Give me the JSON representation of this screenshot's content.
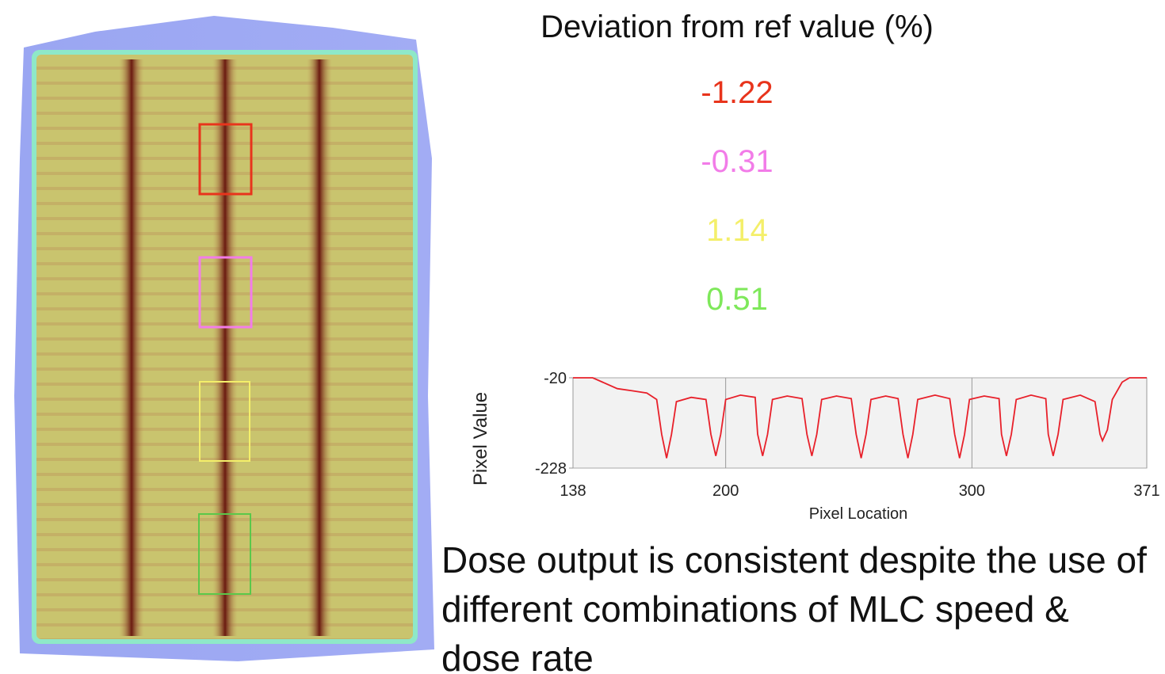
{
  "title": "Deviation from ref value (%)",
  "deviations": [
    {
      "value": -1.22,
      "color": "#e8341c"
    },
    {
      "value": -0.31,
      "color": "#f27ce8"
    },
    {
      "value": 1.14,
      "color": "#f4ef6a"
    },
    {
      "value": 0.51,
      "color": "#7ee85a"
    }
  ],
  "conclusion": "Dose output is consistent despite the use of different combinations of MLC speed & dose rate",
  "chart_data": {
    "type": "line",
    "x_label": "Pixel Location",
    "y_label": "Pixel Value",
    "color": "#e8202a",
    "x": [
      138,
      146,
      150,
      156,
      162,
      168,
      172,
      174,
      176,
      178,
      180,
      186,
      192,
      194,
      196,
      198,
      200,
      206,
      212,
      213,
      215,
      217,
      219,
      225,
      231,
      233,
      235,
      237,
      239,
      245,
      251,
      253,
      255,
      257,
      259,
      265,
      270,
      272,
      274,
      276,
      278,
      285,
      291,
      293,
      295,
      297,
      299,
      305,
      311,
      312,
      314,
      316,
      318,
      324,
      330,
      331,
      333,
      335,
      337,
      344,
      350,
      352,
      353,
      355,
      357,
      361,
      364,
      371
    ],
    "values": [
      -20,
      -20,
      -30,
      -45,
      -50,
      -55,
      -70,
      -150,
      -205,
      -150,
      -75,
      -65,
      -70,
      -150,
      -200,
      -150,
      -70,
      -60,
      -65,
      -150,
      -200,
      -150,
      -70,
      -62,
      -68,
      -150,
      -200,
      -150,
      -70,
      -62,
      -68,
      -150,
      -205,
      -150,
      -70,
      -62,
      -68,
      -150,
      -205,
      -150,
      -70,
      -60,
      -68,
      -150,
      -205,
      -150,
      -70,
      -62,
      -68,
      -150,
      -200,
      -150,
      -70,
      -60,
      -68,
      -150,
      -200,
      -150,
      -70,
      -60,
      -75,
      -150,
      -165,
      -140,
      -70,
      -30,
      -20,
      -20
    ],
    "xlim": [
      138,
      371
    ],
    "ylim": [
      -228,
      -20
    ],
    "xticks": [
      138,
      200,
      300,
      371
    ],
    "yticks": [
      -20,
      -228
    ],
    "grid": true
  }
}
